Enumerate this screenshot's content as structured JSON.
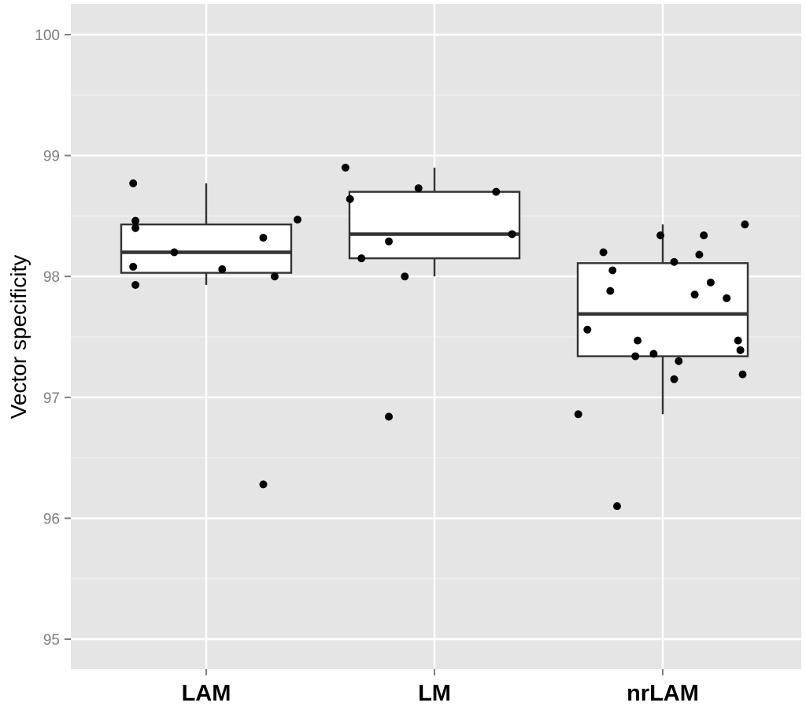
{
  "chart_data": {
    "type": "boxplot",
    "categories": [
      "LAM",
      "LM",
      "nrLAM"
    ],
    "ylabel": "Vector specificity",
    "xlabel": "",
    "ylim": [
      94.8,
      100.25
    ],
    "yticks": [
      95,
      96,
      97,
      98,
      99,
      100
    ],
    "grid": true,
    "background": "#e5e5e5",
    "grid_color": "#ffffff",
    "point_color": "#000000",
    "box_fill": "#ffffff",
    "box_stroke": "#333333",
    "boxes": [
      {
        "category": "LAM",
        "lower_whisker": 97.93,
        "q1": 98.03,
        "median": 98.2,
        "q3": 98.43,
        "upper_whisker": 98.77
      },
      {
        "category": "LM",
        "lower_whisker": 98.0,
        "q1": 98.15,
        "median": 98.35,
        "q3": 98.7,
        "upper_whisker": 98.9
      },
      {
        "category": "nrLAM",
        "lower_whisker": 96.86,
        "q1": 97.34,
        "median": 97.69,
        "q3": 98.11,
        "upper_whisker": 98.43
      }
    ],
    "points": [
      {
        "category": "LAM",
        "jitter": -0.32,
        "y": 98.77
      },
      {
        "category": "LAM",
        "jitter": -0.31,
        "y": 98.46
      },
      {
        "category": "LAM",
        "jitter": -0.31,
        "y": 98.4
      },
      {
        "category": "LAM",
        "jitter": -0.32,
        "y": 98.08
      },
      {
        "category": "LAM",
        "jitter": -0.31,
        "y": 97.93
      },
      {
        "category": "LAM",
        "jitter": -0.14,
        "y": 98.2
      },
      {
        "category": "LAM",
        "jitter": 0.07,
        "y": 98.06
      },
      {
        "category": "LAM",
        "jitter": 0.25,
        "y": 98.32
      },
      {
        "category": "LAM",
        "jitter": 0.3,
        "y": 98.0
      },
      {
        "category": "LAM",
        "jitter": 0.4,
        "y": 98.47
      },
      {
        "category": "LAM",
        "jitter": 0.25,
        "y": 96.28
      },
      {
        "category": "LM",
        "jitter": -0.39,
        "y": 98.9
      },
      {
        "category": "LM",
        "jitter": -0.37,
        "y": 98.64
      },
      {
        "category": "LM",
        "jitter": -0.32,
        "y": 98.15
      },
      {
        "category": "LM",
        "jitter": -0.2,
        "y": 98.29
      },
      {
        "category": "LM",
        "jitter": -0.2,
        "y": 96.84
      },
      {
        "category": "LM",
        "jitter": -0.13,
        "y": 98.0
      },
      {
        "category": "LM",
        "jitter": -0.07,
        "y": 98.73
      },
      {
        "category": "LM",
        "jitter": 0.27,
        "y": 98.7
      },
      {
        "category": "LM",
        "jitter": 0.34,
        "y": 98.35
      },
      {
        "category": "nrLAM",
        "jitter": -0.37,
        "y": 96.86
      },
      {
        "category": "nrLAM",
        "jitter": -0.33,
        "y": 97.56
      },
      {
        "category": "nrLAM",
        "jitter": -0.26,
        "y": 98.2
      },
      {
        "category": "nrLAM",
        "jitter": -0.22,
        "y": 98.05
      },
      {
        "category": "nrLAM",
        "jitter": -0.23,
        "y": 97.88
      },
      {
        "category": "nrLAM",
        "jitter": -0.2,
        "y": 96.1
      },
      {
        "category": "nrLAM",
        "jitter": -0.11,
        "y": 97.47
      },
      {
        "category": "nrLAM",
        "jitter": -0.12,
        "y": 97.34
      },
      {
        "category": "nrLAM",
        "jitter": -0.04,
        "y": 97.36
      },
      {
        "category": "nrLAM",
        "jitter": -0.01,
        "y": 98.34
      },
      {
        "category": "nrLAM",
        "jitter": 0.05,
        "y": 98.12
      },
      {
        "category": "nrLAM",
        "jitter": 0.07,
        "y": 97.3
      },
      {
        "category": "nrLAM",
        "jitter": 0.05,
        "y": 97.15
      },
      {
        "category": "nrLAM",
        "jitter": 0.14,
        "y": 97.85
      },
      {
        "category": "nrLAM",
        "jitter": 0.16,
        "y": 98.18
      },
      {
        "category": "nrLAM",
        "jitter": 0.18,
        "y": 98.34
      },
      {
        "category": "nrLAM",
        "jitter": 0.21,
        "y": 97.95
      },
      {
        "category": "nrLAM",
        "jitter": 0.28,
        "y": 97.82
      },
      {
        "category": "nrLAM",
        "jitter": 0.33,
        "y": 97.47
      },
      {
        "category": "nrLAM",
        "jitter": 0.34,
        "y": 97.39
      },
      {
        "category": "nrLAM",
        "jitter": 0.35,
        "y": 97.19
      },
      {
        "category": "nrLAM",
        "jitter": 0.36,
        "y": 98.43
      }
    ]
  }
}
